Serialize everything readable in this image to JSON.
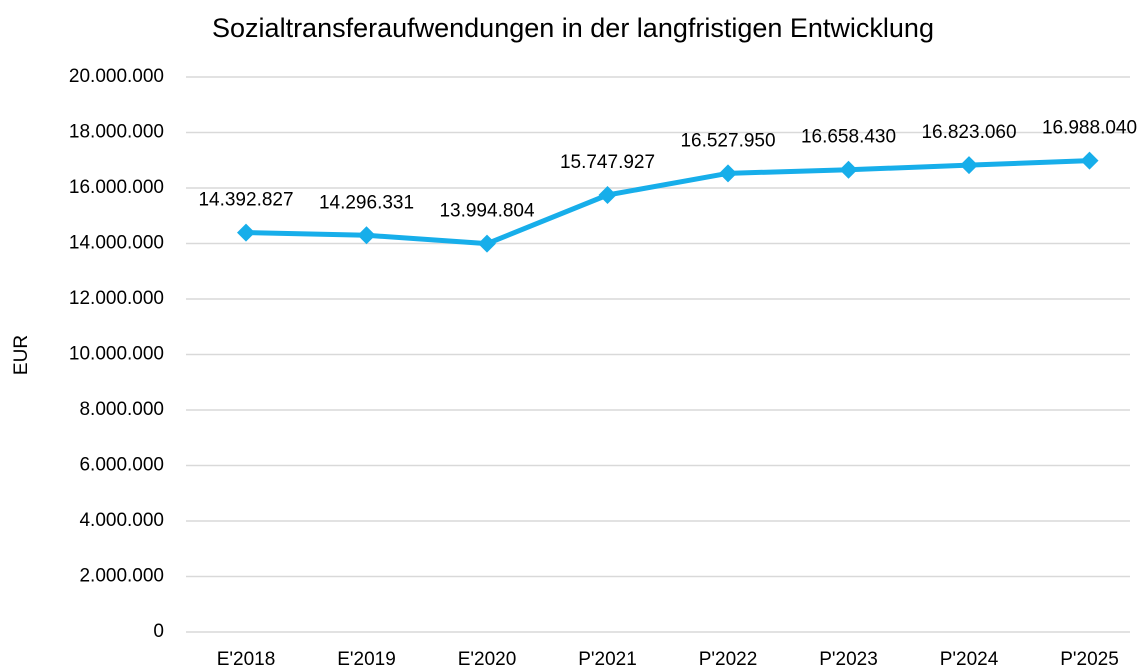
{
  "chart_data": {
    "type": "line",
    "title": "Sozialtransferaufwendungen in der langfristigen Entwicklung",
    "y_label": "EUR",
    "categories": [
      "E'2018",
      "E'2019",
      "E'2020",
      "P'2021",
      "P'2022",
      "P'2023",
      "P'2024",
      "P'2025"
    ],
    "series": [
      {
        "name": "Sozialtransferaufwendungen",
        "color": "#17aeea",
        "values": [
          14392827,
          14296331,
          13994804,
          15747927,
          16527950,
          16658430,
          16823060,
          16988040
        ],
        "value_labels": [
          "14.392.827",
          "14.296.331",
          "13.994.804",
          "15.747.927",
          "16.527.950",
          "16.658.430",
          "16.823.060",
          "16.988.040"
        ]
      }
    ],
    "ylim": [
      0,
      20000000
    ],
    "yticks": [
      0,
      {
        "value": 2000000,
        "label": "2.000.000"
      },
      {
        "value": 4000000,
        "label": "4.000.000"
      },
      {
        "value": 6000000,
        "label": "6.000.000"
      },
      {
        "value": 8000000,
        "label": "8.000.000"
      },
      {
        "value": 10000000,
        "label": "10.000.000"
      },
      {
        "value": 12000000,
        "label": "12.000.000"
      },
      {
        "value": 14000000,
        "label": "14.000.000"
      },
      {
        "value": 16000000,
        "label": "16.000.000"
      },
      {
        "value": 18000000,
        "label": "18.000.000"
      },
      {
        "value": 20000000,
        "label": "20.000.000"
      }
    ],
    "grid": true
  }
}
